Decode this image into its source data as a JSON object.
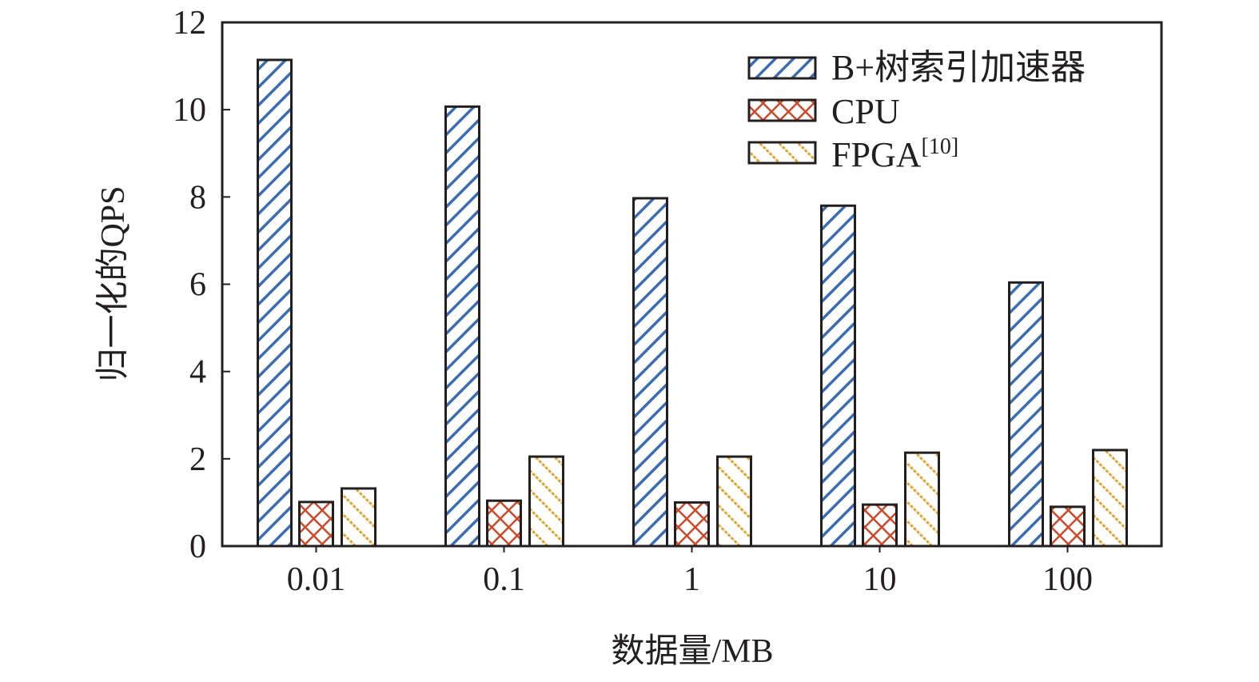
{
  "chart_data": {
    "type": "bar",
    "title": "",
    "xlabel": "数据量/MB",
    "ylabel": "归一化的QPS",
    "categories": [
      "0.01",
      "0.1",
      "1",
      "10",
      "100"
    ],
    "ylim": [
      0,
      12
    ],
    "yticks": [
      "0",
      "2",
      "4",
      "6",
      "8",
      "10",
      "12"
    ],
    "grid": false,
    "legend_position": "top-right",
    "series": [
      {
        "name": "B+树索引加速器",
        "color": "#3a6db3",
        "pattern": "diagonal",
        "values": [
          11.14,
          10.07,
          7.97,
          7.8,
          6.04
        ]
      },
      {
        "name": "CPU",
        "color": "#cc4a2a",
        "pattern": "crosshatch",
        "values": [
          1.01,
          1.04,
          1.0,
          0.95,
          0.9
        ]
      },
      {
        "name": "FPGA",
        "name_superscript": "[10]",
        "color": "#e0a634",
        "pattern": "back-diagonal-dotted",
        "values": [
          1.32,
          2.05,
          2.05,
          2.14,
          2.2
        ]
      }
    ]
  }
}
